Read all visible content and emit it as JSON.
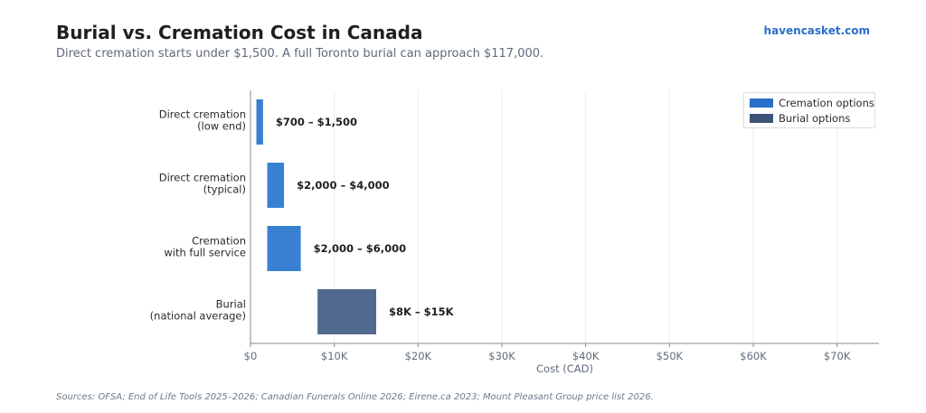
{
  "header": {
    "title": "Burial vs. Cremation Cost in Canada",
    "subtitle": "Direct cremation starts under $1,500. A full Toronto burial can approach $117,000.",
    "brand": "havencasket.com"
  },
  "footer": {
    "sources": "Sources: OFSA; End of Life Tools 2025–2026; Canadian Funerals Online 2026; Eirene.ca 2023; Mount Pleasant Group price list 2026."
  },
  "colors": {
    "cremation": "#3a80d2",
    "burial": "#52698f",
    "cremation_legend": "#2a6fc9",
    "burial_legend": "#3d5478",
    "grid": "#ececec",
    "axis": "#888888",
    "tick_text": "#5f6b7a"
  },
  "chart_data": {
    "type": "bar",
    "orientation": "horizontal",
    "subtype": "floating-range",
    "categories": [
      [
        "Direct cremation",
        "(low end)"
      ],
      [
        "Direct cremation",
        "(typical)"
      ],
      [
        "Cremation",
        "with full service"
      ],
      [
        "Burial",
        "(national average)"
      ]
    ],
    "ranges": [
      [
        700,
        1500
      ],
      [
        2000,
        4000
      ],
      [
        2000,
        6000
      ],
      [
        8000,
        15000
      ]
    ],
    "groups": [
      "cremation",
      "cremation",
      "cremation",
      "burial"
    ],
    "data_labels": [
      "$700 – $1,500",
      "$2,000 – $4,000",
      "$2,000 – $6,000",
      "$8K – $15K"
    ],
    "xlabel": "Cost (CAD)",
    "xlim": [
      0,
      75000
    ],
    "xticks": [
      0,
      10000,
      20000,
      30000,
      40000,
      50000,
      60000,
      70000
    ],
    "xtick_labels": [
      "$0",
      "$10K",
      "$20K",
      "$30K",
      "$40K",
      "$50K",
      "$60K",
      "$70K"
    ],
    "grid": "vertical",
    "legend": {
      "placement": "top-right",
      "entries": [
        {
          "label": "Cremation options",
          "group": "cremation"
        },
        {
          "label": "Burial options",
          "group": "burial"
        }
      ]
    }
  }
}
